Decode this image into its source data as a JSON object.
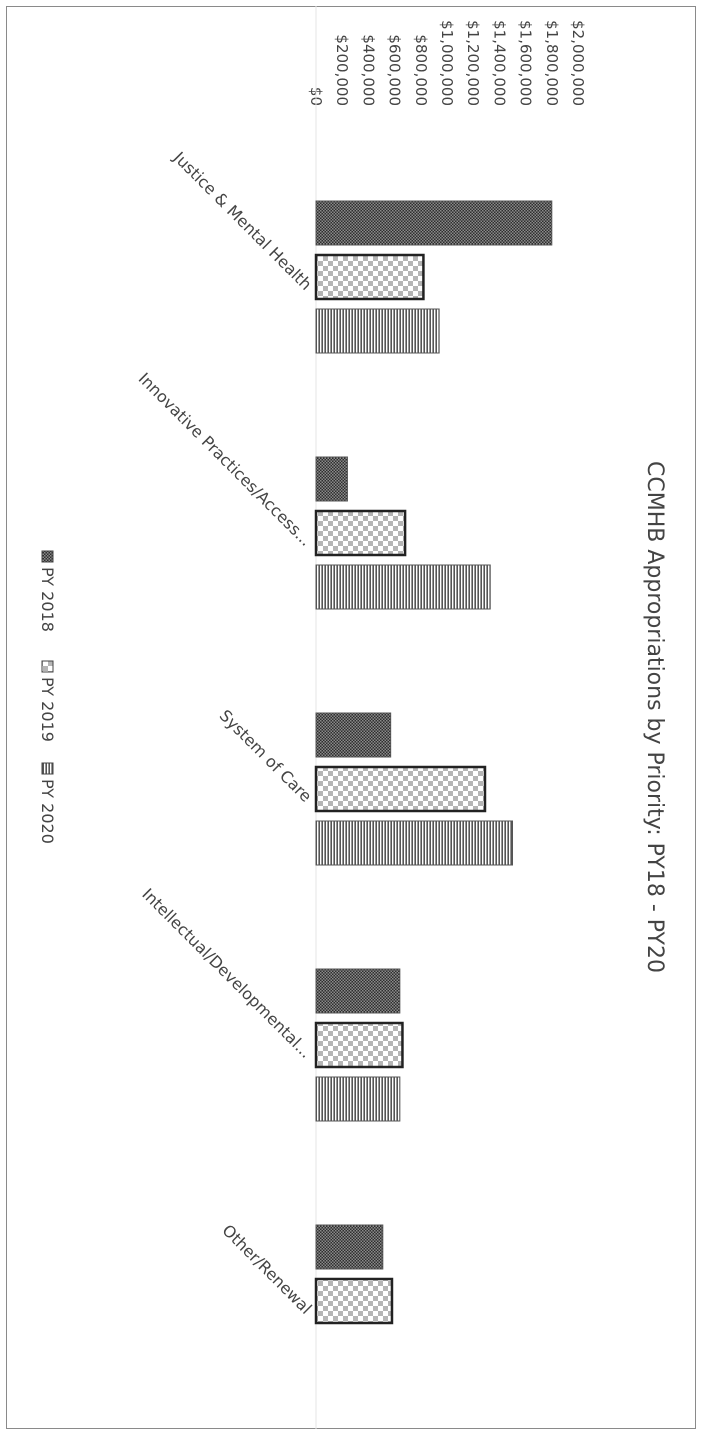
{
  "chart_data": {
    "type": "bar",
    "orientation": "rotated-90",
    "title": "CCMHB Appropriations by Priority: PY18 - PY20",
    "categories": [
      "Justice & Mental Health",
      "Innovative Practices/Access...",
      "System of Care",
      "Intellectual/Developmental...",
      "Other/Renewal"
    ],
    "series": [
      {
        "name": "PY 2018",
        "values": [
          1800000,
          240000,
          570000,
          640000,
          510000
        ],
        "pattern": "dense-dots",
        "color": "#555555"
      },
      {
        "name": "PY 2019",
        "values": [
          820000,
          680000,
          1290000,
          660000,
          580000
        ],
        "pattern": "checker",
        "color": "#333333"
      },
      {
        "name": "PY 2020",
        "values": [
          940000,
          1330000,
          1500000,
          640000,
          null
        ],
        "pattern": "horizontal-lines",
        "color": "#555555"
      }
    ],
    "ylim": [
      0,
      2000000
    ],
    "ticks": [
      0,
      200000,
      400000,
      600000,
      800000,
      1000000,
      1200000,
      1400000,
      1600000,
      1800000,
      2000000
    ],
    "tick_labels": [
      "$0",
      "$200,000",
      "$400,000",
      "$600,000",
      "$800,000",
      "$1,000,000",
      "$1,200,000",
      "$1,400,000",
      "$1,600,000",
      "$1,800,000",
      "$2,000,000"
    ],
    "grid": false,
    "legend_position": "bottom"
  }
}
